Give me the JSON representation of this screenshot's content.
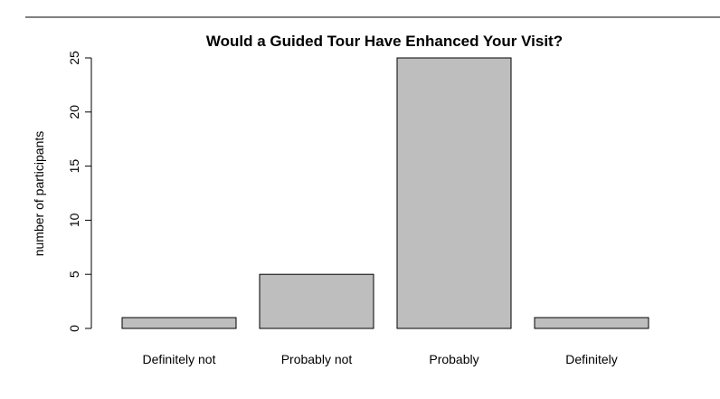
{
  "chart_data": {
    "type": "bar",
    "title": "Would a Guided Tour Have Enhanced Your Visit?",
    "xlabel": "",
    "ylabel": "number of participants",
    "categories": [
      "Definitely not",
      "Probably not",
      "Probably",
      "Definitely"
    ],
    "values": [
      1,
      5,
      25,
      1
    ],
    "ylim": [
      0,
      25
    ],
    "yticks": [
      0,
      5,
      10,
      15,
      20,
      25
    ],
    "bar_color": "#bebebe",
    "grid": false,
    "legend": "none"
  }
}
